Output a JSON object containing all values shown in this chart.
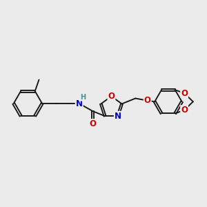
{
  "background_color": "#ebebeb",
  "bond_color": "#1a1a1a",
  "bond_width": 1.4,
  "dbl_off": 0.055,
  "atom_colors": {
    "O": "#cc0000",
    "N": "#0000cc",
    "H": "#4a9090",
    "C": "#1a1a1a"
  },
  "fs": 8.5
}
